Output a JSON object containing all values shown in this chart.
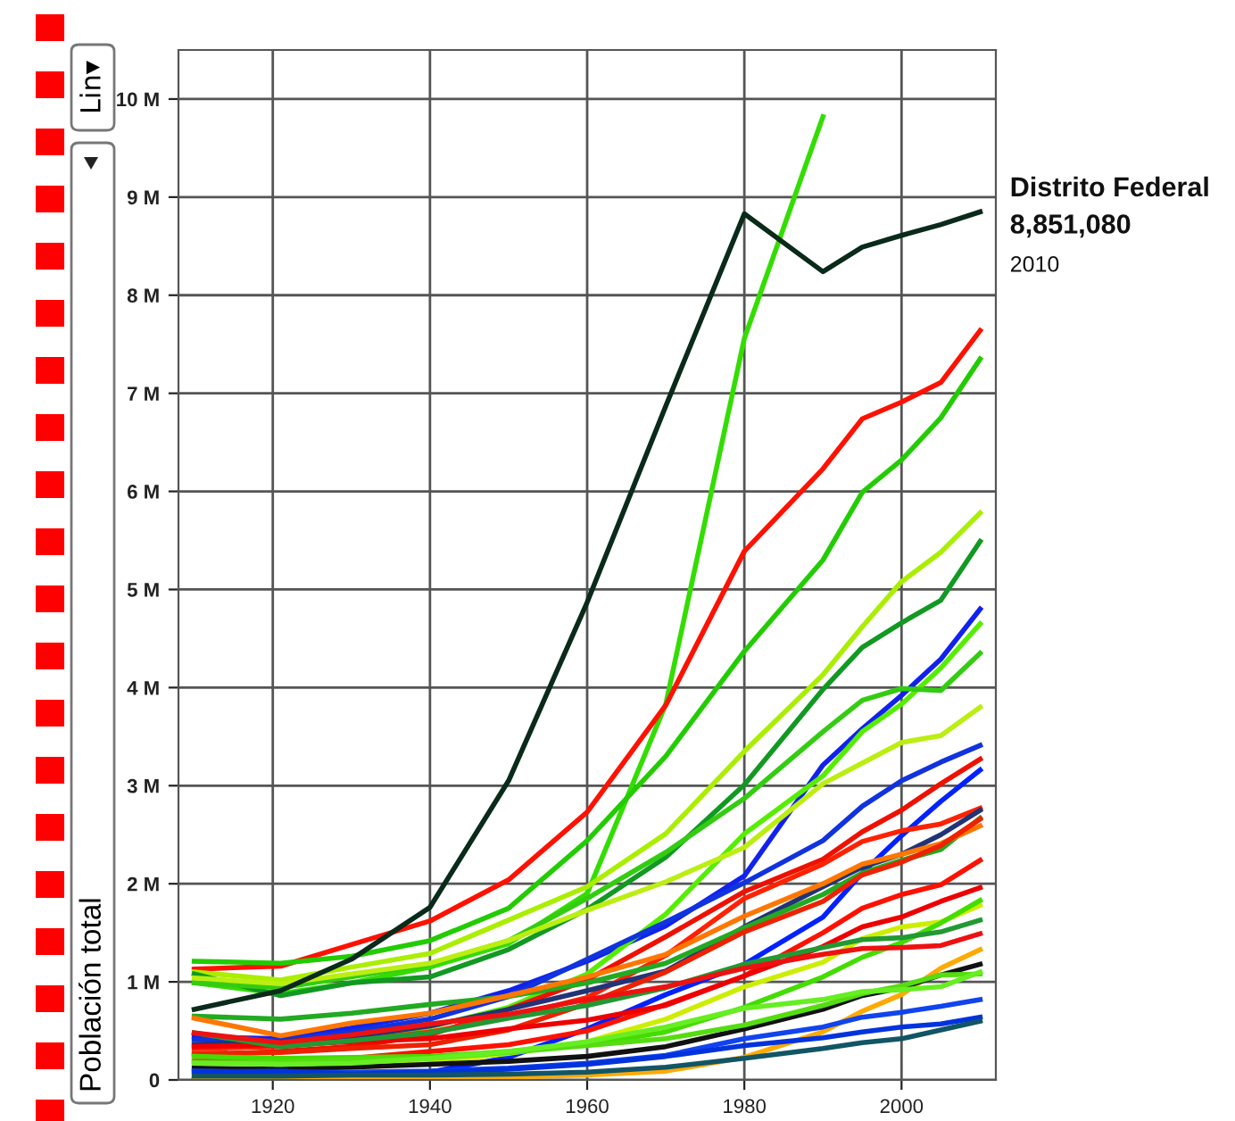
{
  "chart_data": {
    "type": "line",
    "ylabel": "Población total",
    "x": [
      1910,
      1921,
      1930,
      1940,
      1950,
      1960,
      1970,
      1980,
      1990,
      1995,
      2000,
      2005,
      2010
    ],
    "xlim": [
      1908,
      2012
    ],
    "xticks": [
      1920,
      1940,
      1960,
      1980,
      2000
    ],
    "ylim": [
      0,
      10.5
    ],
    "yticks": [
      0,
      {
        "value": 1,
        "label": "1 M"
      },
      {
        "value": 2,
        "label": "2 M"
      },
      {
        "value": 3,
        "label": "3 M"
      },
      {
        "value": 4,
        "label": "4 M"
      },
      {
        "value": 5,
        "label": "5 M"
      },
      {
        "value": 6,
        "label": "6 M"
      },
      {
        "value": 7,
        "label": "7 M"
      },
      {
        "value": 8,
        "label": "8 M"
      },
      {
        "value": 9,
        "label": "9 M"
      },
      {
        "value": 10,
        "label": "10 M"
      }
    ],
    "grid": true,
    "legend": false,
    "marker": "none",
    "line_style": "solid",
    "annotations": [
      "Lin▾",
      {
        "text": "8,851,080",
        "x": 2010,
        "y": 8.85
      },
      {
        "text": "2010",
        "x": 2010,
        "y": 8.85
      }
    ],
    "series": [
      {
        "color": "#33dd00",
        "values": [
          0.99,
          0.88,
          0.99,
          1.15,
          1.39,
          1.9,
          3.83,
          7.56,
          9.82,
          null,
          null,
          null,
          null
        ]
      },
      {
        "color": "#ff1100",
        "values": [
          1.13,
          1.16,
          1.38,
          1.62,
          2.04,
          2.73,
          3.82,
          5.39,
          6.23,
          6.74,
          6.91,
          7.11,
          7.64
        ]
      },
      {
        "color": "#22cc00",
        "values": [
          1.21,
          1.19,
          1.26,
          1.42,
          1.75,
          2.44,
          3.3,
          4.37,
          5.3,
          5.99,
          6.32,
          6.75,
          7.35
        ]
      },
      {
        "color": "#aaee00",
        "values": [
          1.1,
          1.02,
          1.15,
          1.29,
          1.63,
          1.97,
          2.51,
          3.35,
          4.13,
          4.62,
          5.08,
          5.38,
          5.78
        ]
      },
      {
        "color": "#119922",
        "values": [
          1.08,
          0.86,
          0.99,
          1.05,
          1.33,
          1.74,
          2.27,
          3.01,
          3.98,
          4.41,
          4.66,
          4.89,
          5.49
        ]
      },
      {
        "color": "#1122ee",
        "values": [
          0.44,
          0.42,
          0.53,
          0.68,
          0.91,
          1.21,
          1.57,
          2.08,
          3.21,
          3.58,
          3.92,
          4.29,
          4.8
        ]
      },
      {
        "color": "#55ee00",
        "values": [
          null,
          null,
          0.42,
          0.54,
          0.74,
          1.08,
          1.69,
          2.51,
          3.1,
          3.55,
          3.83,
          4.2,
          4.65
        ]
      },
      {
        "color": "#33cc11",
        "values": [
          0.99,
          0.94,
          1.05,
          1.18,
          1.42,
          1.85,
          2.32,
          2.87,
          3.55,
          3.87,
          3.99,
          3.97,
          4.35
        ]
      },
      {
        "color": "#bbee11",
        "values": [
          1.04,
          0.98,
          1.08,
          1.19,
          1.42,
          1.73,
          2.02,
          2.37,
          3.02,
          3.23,
          3.44,
          3.51,
          3.8
        ]
      },
      {
        "color": "#1133dd",
        "values": [
          0.41,
          0.4,
          0.49,
          0.62,
          0.85,
          1.23,
          1.61,
          2.01,
          2.44,
          2.79,
          3.05,
          3.24,
          3.41
        ]
      },
      {
        "color": "#ee1100",
        "values": [
          0.25,
          0.29,
          0.34,
          0.46,
          0.72,
          1.02,
          1.46,
          1.92,
          2.25,
          2.53,
          2.75,
          3.02,
          3.27
        ]
      },
      {
        "color": "#0022ff",
        "values": [
          0.01,
          0.02,
          0.05,
          0.08,
          0.23,
          0.52,
          0.87,
          1.18,
          1.66,
          2.11,
          2.49,
          2.84,
          3.16
        ]
      },
      {
        "color": "#ff2200",
        "values": [
          0.32,
          0.34,
          0.4,
          0.49,
          0.64,
          0.84,
          1.27,
          1.85,
          2.2,
          2.43,
          2.54,
          2.61,
          2.77
        ]
      },
      {
        "color": "#223377",
        "values": [
          0.36,
          0.39,
          0.44,
          0.55,
          0.72,
          0.91,
          1.11,
          1.56,
          1.97,
          2.17,
          2.3,
          2.5,
          2.75
        ]
      },
      {
        "color": "#22aa22",
        "values": [
          0.65,
          0.62,
          0.68,
          0.77,
          0.85,
          0.99,
          1.19,
          1.55,
          1.89,
          2.11,
          2.24,
          2.35,
          2.67
        ]
      },
      {
        "color": "#ff7700",
        "values": [
          0.63,
          0.45,
          0.58,
          0.68,
          0.86,
          1.05,
          1.28,
          1.67,
          2.0,
          2.2,
          2.3,
          2.41,
          2.59
        ]
      },
      {
        "color": "#ee2200",
        "values": [
          0.27,
          0.28,
          0.32,
          0.36,
          0.51,
          0.78,
          1.1,
          1.51,
          1.82,
          2.09,
          2.22,
          2.39,
          2.66
        ]
      },
      {
        "color": "#ff1100",
        "values": [
          0.19,
          0.21,
          0.22,
          0.29,
          0.36,
          0.5,
          0.77,
          1.06,
          1.5,
          1.75,
          1.89,
          1.99,
          2.24
        ]
      },
      {
        "color": "#ee0000",
        "values": [
          0.34,
          0.36,
          0.39,
          0.42,
          0.52,
          0.61,
          0.76,
          1.06,
          1.36,
          1.56,
          1.66,
          1.82,
          1.96
        ]
      },
      {
        "color": "#ccee00",
        "values": [
          null,
          null,
          0.13,
          0.18,
          0.27,
          0.39,
          0.62,
          0.95,
          1.2,
          1.44,
          1.56,
          1.61,
          1.78
        ]
      },
      {
        "color": "#44dd00",
        "values": [
          0.24,
          0.22,
          0.23,
          0.24,
          0.29,
          0.36,
          0.49,
          0.74,
          1.05,
          1.25,
          1.4,
          1.6,
          1.83
        ]
      },
      {
        "color": "#229933",
        "values": [
          0.48,
          0.34,
          0.4,
          0.48,
          0.63,
          0.76,
          0.94,
          1.18,
          1.35,
          1.43,
          1.45,
          1.51,
          1.63
        ]
      },
      {
        "color": "#ee1111",
        "values": [
          0.48,
          0.38,
          0.46,
          0.57,
          0.67,
          0.82,
          0.95,
          1.14,
          1.28,
          1.34,
          1.35,
          1.37,
          1.49
        ]
      },
      {
        "color": "#ffaa00",
        "values": [
          0.01,
          0.01,
          0.01,
          0.02,
          0.03,
          0.05,
          0.09,
          0.23,
          0.49,
          0.7,
          0.87,
          1.14,
          1.33
        ]
      },
      {
        "color": "#111111",
        "values": [
          0.12,
          0.11,
          0.13,
          0.16,
          0.19,
          0.24,
          0.34,
          0.52,
          0.72,
          0.86,
          0.94,
          1.07,
          1.18
        ]
      },
      {
        "color": "#55dd11",
        "values": [
          0.18,
          0.18,
          0.21,
          0.22,
          0.28,
          0.35,
          0.42,
          0.56,
          0.76,
          0.88,
          0.96,
          1.07,
          1.08
        ]
      },
      {
        "color": "#66ee22",
        "values": [
          0.17,
          0.16,
          0.17,
          0.22,
          0.29,
          0.39,
          0.54,
          0.73,
          0.82,
          0.9,
          0.92,
          0.95,
          1.1
        ]
      },
      {
        "color": "#1144ee",
        "values": [
          0.09,
          0.08,
          0.08,
          0.09,
          0.12,
          0.17,
          0.25,
          0.42,
          0.54,
          0.64,
          0.69,
          0.75,
          0.82
        ]
      },
      {
        "color": "#0033dd",
        "values": [
          0.08,
          0.09,
          0.06,
          0.08,
          0.11,
          0.16,
          0.24,
          0.35,
          0.43,
          0.49,
          0.54,
          0.57,
          0.64
        ]
      },
      {
        "color": "#115566",
        "values": [
          0.04,
          0.04,
          0.05,
          0.05,
          0.06,
          0.08,
          0.13,
          0.22,
          0.32,
          0.38,
          0.42,
          0.51,
          0.6
        ]
      },
      {
        "name": "Distrito Federal",
        "color": "#0a2a1a",
        "values": [
          0.72,
          0.91,
          1.23,
          1.76,
          3.05,
          4.87,
          6.87,
          8.83,
          8.24,
          8.49,
          8.61,
          8.72,
          8.85
        ]
      }
    ]
  }
}
